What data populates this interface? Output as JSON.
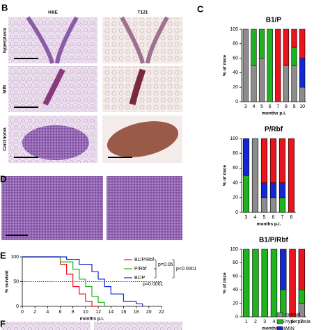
{
  "figure": {
    "panel_labels": [
      "B",
      "C",
      "D",
      "E",
      "F"
    ],
    "image_column_headers": [
      "H&E",
      "T121"
    ],
    "image_row_labels": [
      "hyperplasia",
      "MIN",
      "Carcinoma"
    ]
  },
  "chart_data": [
    {
      "type": "stacked_bar",
      "title": "B1/P",
      "x_label": "months p.i.",
      "y_label": "% of mice",
      "categories": [
        "3",
        "4",
        "5",
        "6",
        "7",
        "8",
        "9",
        "10"
      ],
      "ylim": [
        0,
        100
      ],
      "yticks": [
        0,
        20,
        40,
        60,
        80,
        100
      ],
      "series": [
        {
          "name": "normal",
          "color": "#8c8c8c",
          "values": [
            100,
            50,
            60,
            0,
            0,
            50,
            50,
            20
          ]
        },
        {
          "name": "hyperplasia",
          "color": "#1fb31f",
          "values": [
            0,
            50,
            40,
            100,
            0,
            0,
            25,
            0
          ]
        },
        {
          "name": "MIN",
          "color": "#1428d2",
          "values": [
            0,
            0,
            0,
            0,
            0,
            0,
            0,
            40
          ]
        },
        {
          "color": "#e8141e",
          "values": [
            0,
            0,
            0,
            0,
            100,
            50,
            25,
            40
          ]
        }
      ]
    },
    {
      "type": "stacked_bar",
      "title": "P/Rbf",
      "x_label": "months p.i.",
      "y_label": "% of mice",
      "categories": [
        "3",
        "4",
        "5",
        "6",
        "7",
        "8"
      ],
      "ylim": [
        0,
        100
      ],
      "yticks": [
        0,
        20,
        40,
        60,
        80,
        100
      ],
      "series": [
        {
          "name": "normal",
          "color": "#8c8c8c",
          "values": [
            0,
            100,
            20,
            20,
            0,
            0
          ]
        },
        {
          "name": "hyperplasia",
          "color": "#1fb31f",
          "values": [
            50,
            0,
            0,
            0,
            20,
            0
          ]
        },
        {
          "name": "MIN",
          "color": "#1428d2",
          "values": [
            50,
            0,
            20,
            20,
            20,
            0
          ]
        },
        {
          "color": "#e8141e",
          "values": [
            0,
            0,
            60,
            60,
            60,
            100
          ]
        }
      ]
    },
    {
      "type": "stacked_bar",
      "title": "B1/P/Rbf",
      "x_label": "months p.i.",
      "y_label": "% of mice",
      "categories": [
        "1",
        "2",
        "3",
        "4",
        "5",
        "6",
        "7"
      ],
      "ylim": [
        0,
        100
      ],
      "yticks": [
        0,
        20,
        40,
        60,
        80,
        100
      ],
      "legend": true,
      "series": [
        {
          "name": "normal",
          "color": "#8c8c8c",
          "values": [
            0,
            0,
            0,
            0,
            0,
            0,
            20
          ]
        },
        {
          "name": "hyperplasia",
          "color": "#1fb31f",
          "values": [
            100,
            100,
            100,
            100,
            40,
            0,
            20
          ]
        },
        {
          "name": "MIN",
          "color": "#1428d2",
          "values": [
            0,
            0,
            0,
            0,
            60,
            0,
            0
          ]
        },
        {
          "color": "#e8141e",
          "values": [
            0,
            0,
            0,
            0,
            0,
            100,
            60
          ]
        }
      ]
    },
    {
      "type": "line",
      "x_label": "months p.i.",
      "y_label": "% survival",
      "xlim": [
        0,
        22
      ],
      "xticks": [
        0,
        2,
        4,
        6,
        8,
        10,
        12,
        14,
        16,
        18,
        20,
        22
      ],
      "ylim": [
        0,
        100
      ],
      "yticks": [
        0,
        50,
        100
      ],
      "reference_line": 50,
      "annotations": [
        "p=0.05",
        "p<0.0001",
        "p=0.0001"
      ],
      "series": [
        {
          "name": "B1/P/Rbf",
          "color": "#e8141e",
          "x": [
            0,
            6,
            6,
            7,
            7,
            8,
            8,
            9,
            9,
            10,
            10,
            11,
            11,
            12
          ],
          "values": [
            100,
            100,
            85,
            85,
            65,
            65,
            40,
            40,
            25,
            25,
            10,
            10,
            0,
            0
          ]
        },
        {
          "name": "P/Rbf",
          "color": "#1fb31f",
          "x": [
            0,
            6,
            6,
            8,
            8,
            9,
            9,
            10,
            10,
            11,
            11,
            12,
            12,
            13,
            13
          ],
          "values": [
            100,
            100,
            90,
            90,
            75,
            75,
            55,
            55,
            40,
            40,
            20,
            20,
            8,
            8,
            0
          ]
        },
        {
          "name": "B1/P",
          "color": "#1428d2",
          "x": [
            0,
            7,
            7,
            9,
            9,
            11,
            11,
            12,
            12,
            13,
            13,
            14,
            14,
            16,
            16,
            18,
            18,
            19,
            19
          ],
          "values": [
            100,
            100,
            95,
            95,
            85,
            85,
            70,
            70,
            55,
            55,
            40,
            40,
            25,
            25,
            10,
            10,
            5,
            5,
            0
          ]
        }
      ]
    }
  ]
}
